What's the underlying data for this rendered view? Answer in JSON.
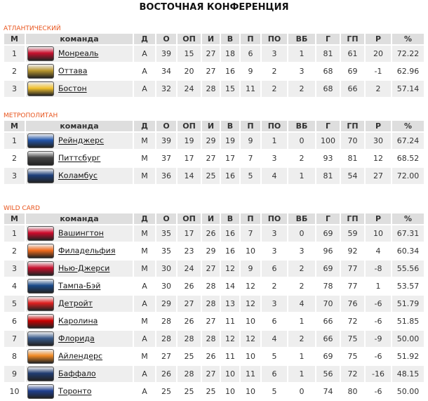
{
  "title": "ВОСТОЧНАЯ КОНФЕРЕНЦИЯ",
  "columns": [
    "М",
    "команда",
    "Д",
    "О",
    "ОП",
    "И",
    "В",
    "П",
    "ПО",
    "ВБ",
    "Г",
    "ГП",
    "Р",
    "%"
  ],
  "sections": [
    {
      "name": "АТЛАНТИЧЕСКИЙ",
      "rows": [
        [
          "1",
          "Монреаль",
          "А",
          "39",
          "15",
          "27",
          "18",
          "6",
          "3",
          "1",
          "81",
          "61",
          "20",
          "72.22"
        ],
        [
          "2",
          "Оттава",
          "А",
          "34",
          "20",
          "27",
          "16",
          "9",
          "2",
          "3",
          "68",
          "69",
          "-1",
          "62.96"
        ],
        [
          "3",
          "Бостон",
          "А",
          "32",
          "24",
          "28",
          "15",
          "11",
          "2",
          "2",
          "68",
          "66",
          "2",
          "57.14"
        ]
      ]
    },
    {
      "name": "МЕТРОПОЛИТАН",
      "rows": [
        [
          "1",
          "Рейнджерс",
          "М",
          "39",
          "19",
          "29",
          "19",
          "9",
          "1",
          "0",
          "100",
          "70",
          "30",
          "67.24"
        ],
        [
          "2",
          "Питтсбург",
          "М",
          "37",
          "17",
          "27",
          "17",
          "7",
          "3",
          "2",
          "93",
          "81",
          "12",
          "68.52"
        ],
        [
          "3",
          "Коламбус",
          "М",
          "36",
          "14",
          "25",
          "16",
          "5",
          "4",
          "1",
          "81",
          "54",
          "27",
          "72.00"
        ]
      ]
    },
    {
      "name": "WILD CARD",
      "rows": [
        [
          "1",
          "Вашингтон",
          "М",
          "35",
          "17",
          "26",
          "16",
          "7",
          "3",
          "0",
          "69",
          "59",
          "10",
          "67.31"
        ],
        [
          "2",
          "Филадельфия",
          "М",
          "35",
          "23",
          "29",
          "16",
          "10",
          "3",
          "3",
          "96",
          "92",
          "4",
          "60.34"
        ],
        [
          "3",
          "Нью-Джерси",
          "М",
          "30",
          "24",
          "27",
          "12",
          "9",
          "6",
          "2",
          "69",
          "77",
          "-8",
          "55.56"
        ],
        [
          "4",
          "Тампа-Бэй",
          "А",
          "30",
          "26",
          "28",
          "14",
          "12",
          "2",
          "2",
          "78",
          "77",
          "1",
          "53.57"
        ],
        [
          "5",
          "Детройт",
          "А",
          "29",
          "27",
          "28",
          "13",
          "12",
          "3",
          "4",
          "70",
          "76",
          "-6",
          "51.79"
        ],
        [
          "6",
          "Каролина",
          "М",
          "28",
          "26",
          "27",
          "11",
          "10",
          "6",
          "1",
          "66",
          "72",
          "-6",
          "51.85"
        ],
        [
          "7",
          "Флорида",
          "А",
          "28",
          "28",
          "28",
          "12",
          "12",
          "4",
          "2",
          "66",
          "75",
          "-9",
          "50.00"
        ],
        [
          "8",
          "Айлендерс",
          "М",
          "27",
          "25",
          "26",
          "11",
          "10",
          "5",
          "1",
          "69",
          "75",
          "-6",
          "51.92"
        ],
        [
          "9",
          "Баффало",
          "А",
          "26",
          "28",
          "27",
          "10",
          "11",
          "6",
          "1",
          "56",
          "72",
          "-16",
          "48.15"
        ],
        [
          "10",
          "Торонто",
          "А",
          "25",
          "25",
          "25",
          "10",
          "10",
          "5",
          "0",
          "74",
          "80",
          "-6",
          "50.00"
        ]
      ]
    }
  ],
  "logo_colors": {
    "Монреаль": "#c8102e",
    "Оттава": "#b8962e",
    "Бостон": "#f2c230",
    "Рейнджерс": "#2255aa",
    "Питтсбург": "#444444",
    "Коламбус": "#1d3f7a",
    "Вашингтон": "#cf0a2c",
    "Филадельфия": "#f06a1c",
    "Нью-Джерси": "#c8102e",
    "Тампа-Бэй": "#1a4a8a",
    "Детройт": "#e02020",
    "Каролина": "#cc0000",
    "Флорида": "#3a5c8c",
    "Айлендерс": "#f08a24",
    "Баффало": "#1f3b70",
    "Торонто": "#1f3f8f"
  },
  "accent": "#e8541c"
}
